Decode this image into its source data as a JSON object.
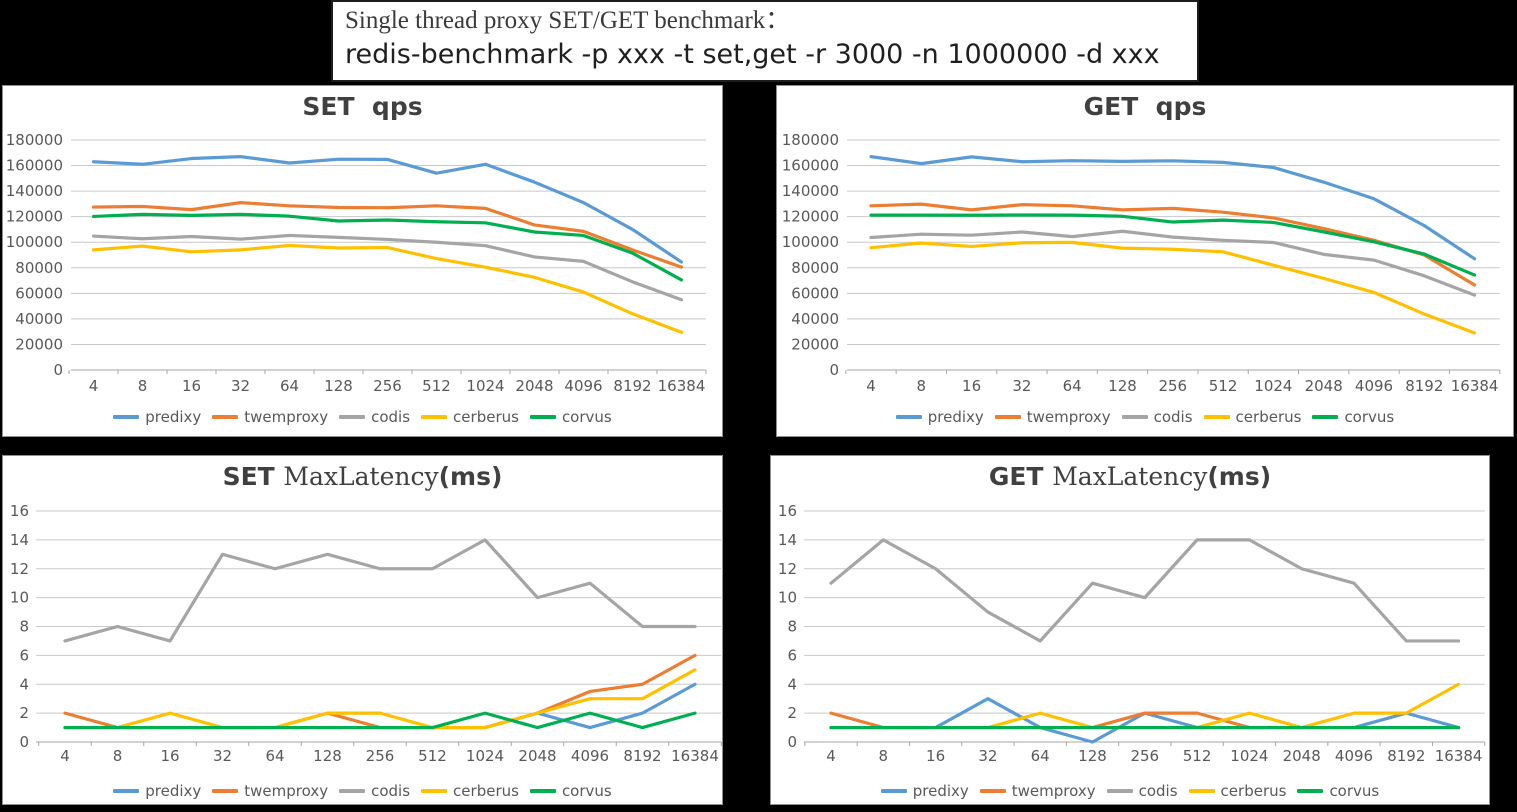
{
  "header": {
    "line1": "Single thread proxy SET/GET benchmark：",
    "line2": "redis-benchmark -p xxx -t set,get -r 3000 -n 1000000 -d xxx"
  },
  "categories": [
    "4",
    "8",
    "16",
    "32",
    "64",
    "128",
    "256",
    "512",
    "1024",
    "2048",
    "4096",
    "8192",
    "16384"
  ],
  "legend": [
    "predixy",
    "twemproxy",
    "codis",
    "cerberus",
    "corvus"
  ],
  "colors": {
    "series": {
      "predixy": "#5B9BD5",
      "twemproxy": "#ED7D31",
      "codis": "#A5A5A5",
      "cerberus": "#FFC000",
      "corvus": "#00B050"
    },
    "grid": "#C9C9C9",
    "axis_line": "#A6A6A6",
    "axis_text": "#595959",
    "chart_title": "#404040",
    "panel_bg": "#FFFFFF",
    "page_bg": "#000000"
  },
  "chart_data": [
    {
      "id": "set-qps",
      "type": "line",
      "title": "SET  qps",
      "title_parts": [
        {
          "text": "SET  qps",
          "serif": false
        }
      ],
      "ylim": [
        0,
        180000
      ],
      "ytick_step": 20000,
      "grid": true,
      "legend_position": "bottom",
      "series": [
        {
          "name": "predixy",
          "values": [
            163000,
            161000,
            165500,
            167000,
            162000,
            165000,
            164800,
            154000,
            161000,
            147000,
            131000,
            110000,
            84500
          ]
        },
        {
          "name": "twemproxy",
          "values": [
            127500,
            128000,
            125500,
            131000,
            128500,
            127200,
            127000,
            128500,
            126500,
            113500,
            108500,
            94000,
            80500
          ]
        },
        {
          "name": "codis",
          "values": [
            104800,
            102700,
            104500,
            102400,
            105300,
            103800,
            102200,
            100000,
            97300,
            88500,
            85000,
            69000,
            55000
          ]
        },
        {
          "name": "cerberus",
          "values": [
            94000,
            97000,
            92500,
            94000,
            97500,
            95500,
            95800,
            87200,
            80500,
            72500,
            61000,
            44000,
            29500
          ]
        },
        {
          "name": "corvus",
          "values": [
            120200,
            121800,
            121000,
            121800,
            120400,
            116600,
            117400,
            116000,
            115200,
            108000,
            105300,
            91500,
            70500
          ]
        }
      ]
    },
    {
      "id": "get-qps",
      "type": "line",
      "title": "GET  qps",
      "title_parts": [
        {
          "text": "GET  qps",
          "serif": false
        }
      ],
      "ylim": [
        0,
        180000
      ],
      "ytick_step": 20000,
      "grid": true,
      "legend_position": "bottom",
      "series": [
        {
          "name": "predixy",
          "values": [
            167000,
            161500,
            166800,
            163000,
            163800,
            163300,
            163700,
            162500,
            158500,
            147000,
            134000,
            113000,
            87000
          ]
        },
        {
          "name": "twemproxy",
          "values": [
            128500,
            129800,
            125300,
            129400,
            128500,
            125300,
            126500,
            123500,
            119000,
            110700,
            101500,
            90000,
            66500
          ]
        },
        {
          "name": "codis",
          "values": [
            103700,
            106300,
            105500,
            108000,
            104400,
            108600,
            104000,
            101500,
            99800,
            90500,
            86000,
            73700,
            58600
          ]
        },
        {
          "name": "cerberus",
          "values": [
            95700,
            99400,
            96700,
            99600,
            99900,
            95400,
            94500,
            92500,
            82000,
            71700,
            60700,
            43800,
            29000
          ]
        },
        {
          "name": "corvus",
          "values": [
            121200,
            121200,
            121100,
            121300,
            121200,
            120300,
            115800,
            117300,
            115500,
            108100,
            100300,
            90700,
            74300
          ]
        }
      ]
    },
    {
      "id": "set-latency",
      "type": "line",
      "title": "SET MaxLatency(ms)",
      "title_parts": [
        {
          "text": "SET ",
          "serif": false
        },
        {
          "text": "MaxLatency",
          "serif": true
        },
        {
          "text": "(ms)",
          "serif": false
        }
      ],
      "ylim": [
        0,
        16
      ],
      "ytick_step": 2,
      "grid": true,
      "legend_position": "bottom",
      "series": [
        {
          "name": "predixy",
          "values": [
            1,
            1,
            1,
            1,
            1,
            1,
            1,
            1,
            1,
            2,
            1,
            2,
            4
          ]
        },
        {
          "name": "twemproxy",
          "values": [
            2,
            1,
            1,
            1,
            1,
            2,
            1,
            1,
            1,
            2,
            3.5,
            4,
            6
          ]
        },
        {
          "name": "codis",
          "values": [
            7,
            8,
            7,
            13,
            12,
            13,
            12,
            12,
            14,
            10,
            11,
            8,
            8
          ]
        },
        {
          "name": "cerberus",
          "values": [
            1,
            1,
            2,
            1,
            1,
            2,
            2,
            1,
            1,
            2,
            3,
            3,
            5
          ]
        },
        {
          "name": "corvus",
          "values": [
            1,
            1,
            1,
            1,
            1,
            1,
            1,
            1,
            2,
            1,
            2,
            1,
            2
          ]
        }
      ]
    },
    {
      "id": "get-latency",
      "type": "line",
      "title": "GET MaxLatency(ms)",
      "title_parts": [
        {
          "text": "GET ",
          "serif": false
        },
        {
          "text": "MaxLatency",
          "serif": true
        },
        {
          "text": "(ms)",
          "serif": false
        }
      ],
      "ylim": [
        0,
        16
      ],
      "ytick_step": 2,
      "grid": true,
      "legend_position": "bottom",
      "series": [
        {
          "name": "predixy",
          "values": [
            1,
            1,
            1,
            3,
            1,
            0,
            2,
            1,
            1,
            1,
            1,
            2,
            1
          ]
        },
        {
          "name": "twemproxy",
          "values": [
            2,
            1,
            1,
            1,
            1,
            1,
            2,
            2,
            1,
            1,
            1,
            1,
            1
          ]
        },
        {
          "name": "codis",
          "values": [
            11,
            14,
            12,
            9,
            7,
            11,
            10,
            14,
            14,
            12,
            11,
            7,
            7
          ]
        },
        {
          "name": "cerberus",
          "values": [
            1,
            1,
            1,
            1,
            2,
            1,
            1,
            1,
            2,
            1,
            2,
            2,
            4
          ]
        },
        {
          "name": "corvus",
          "values": [
            1,
            1,
            1,
            1,
            1,
            1,
            1,
            1,
            1,
            1,
            1,
            1,
            1
          ]
        }
      ]
    }
  ]
}
